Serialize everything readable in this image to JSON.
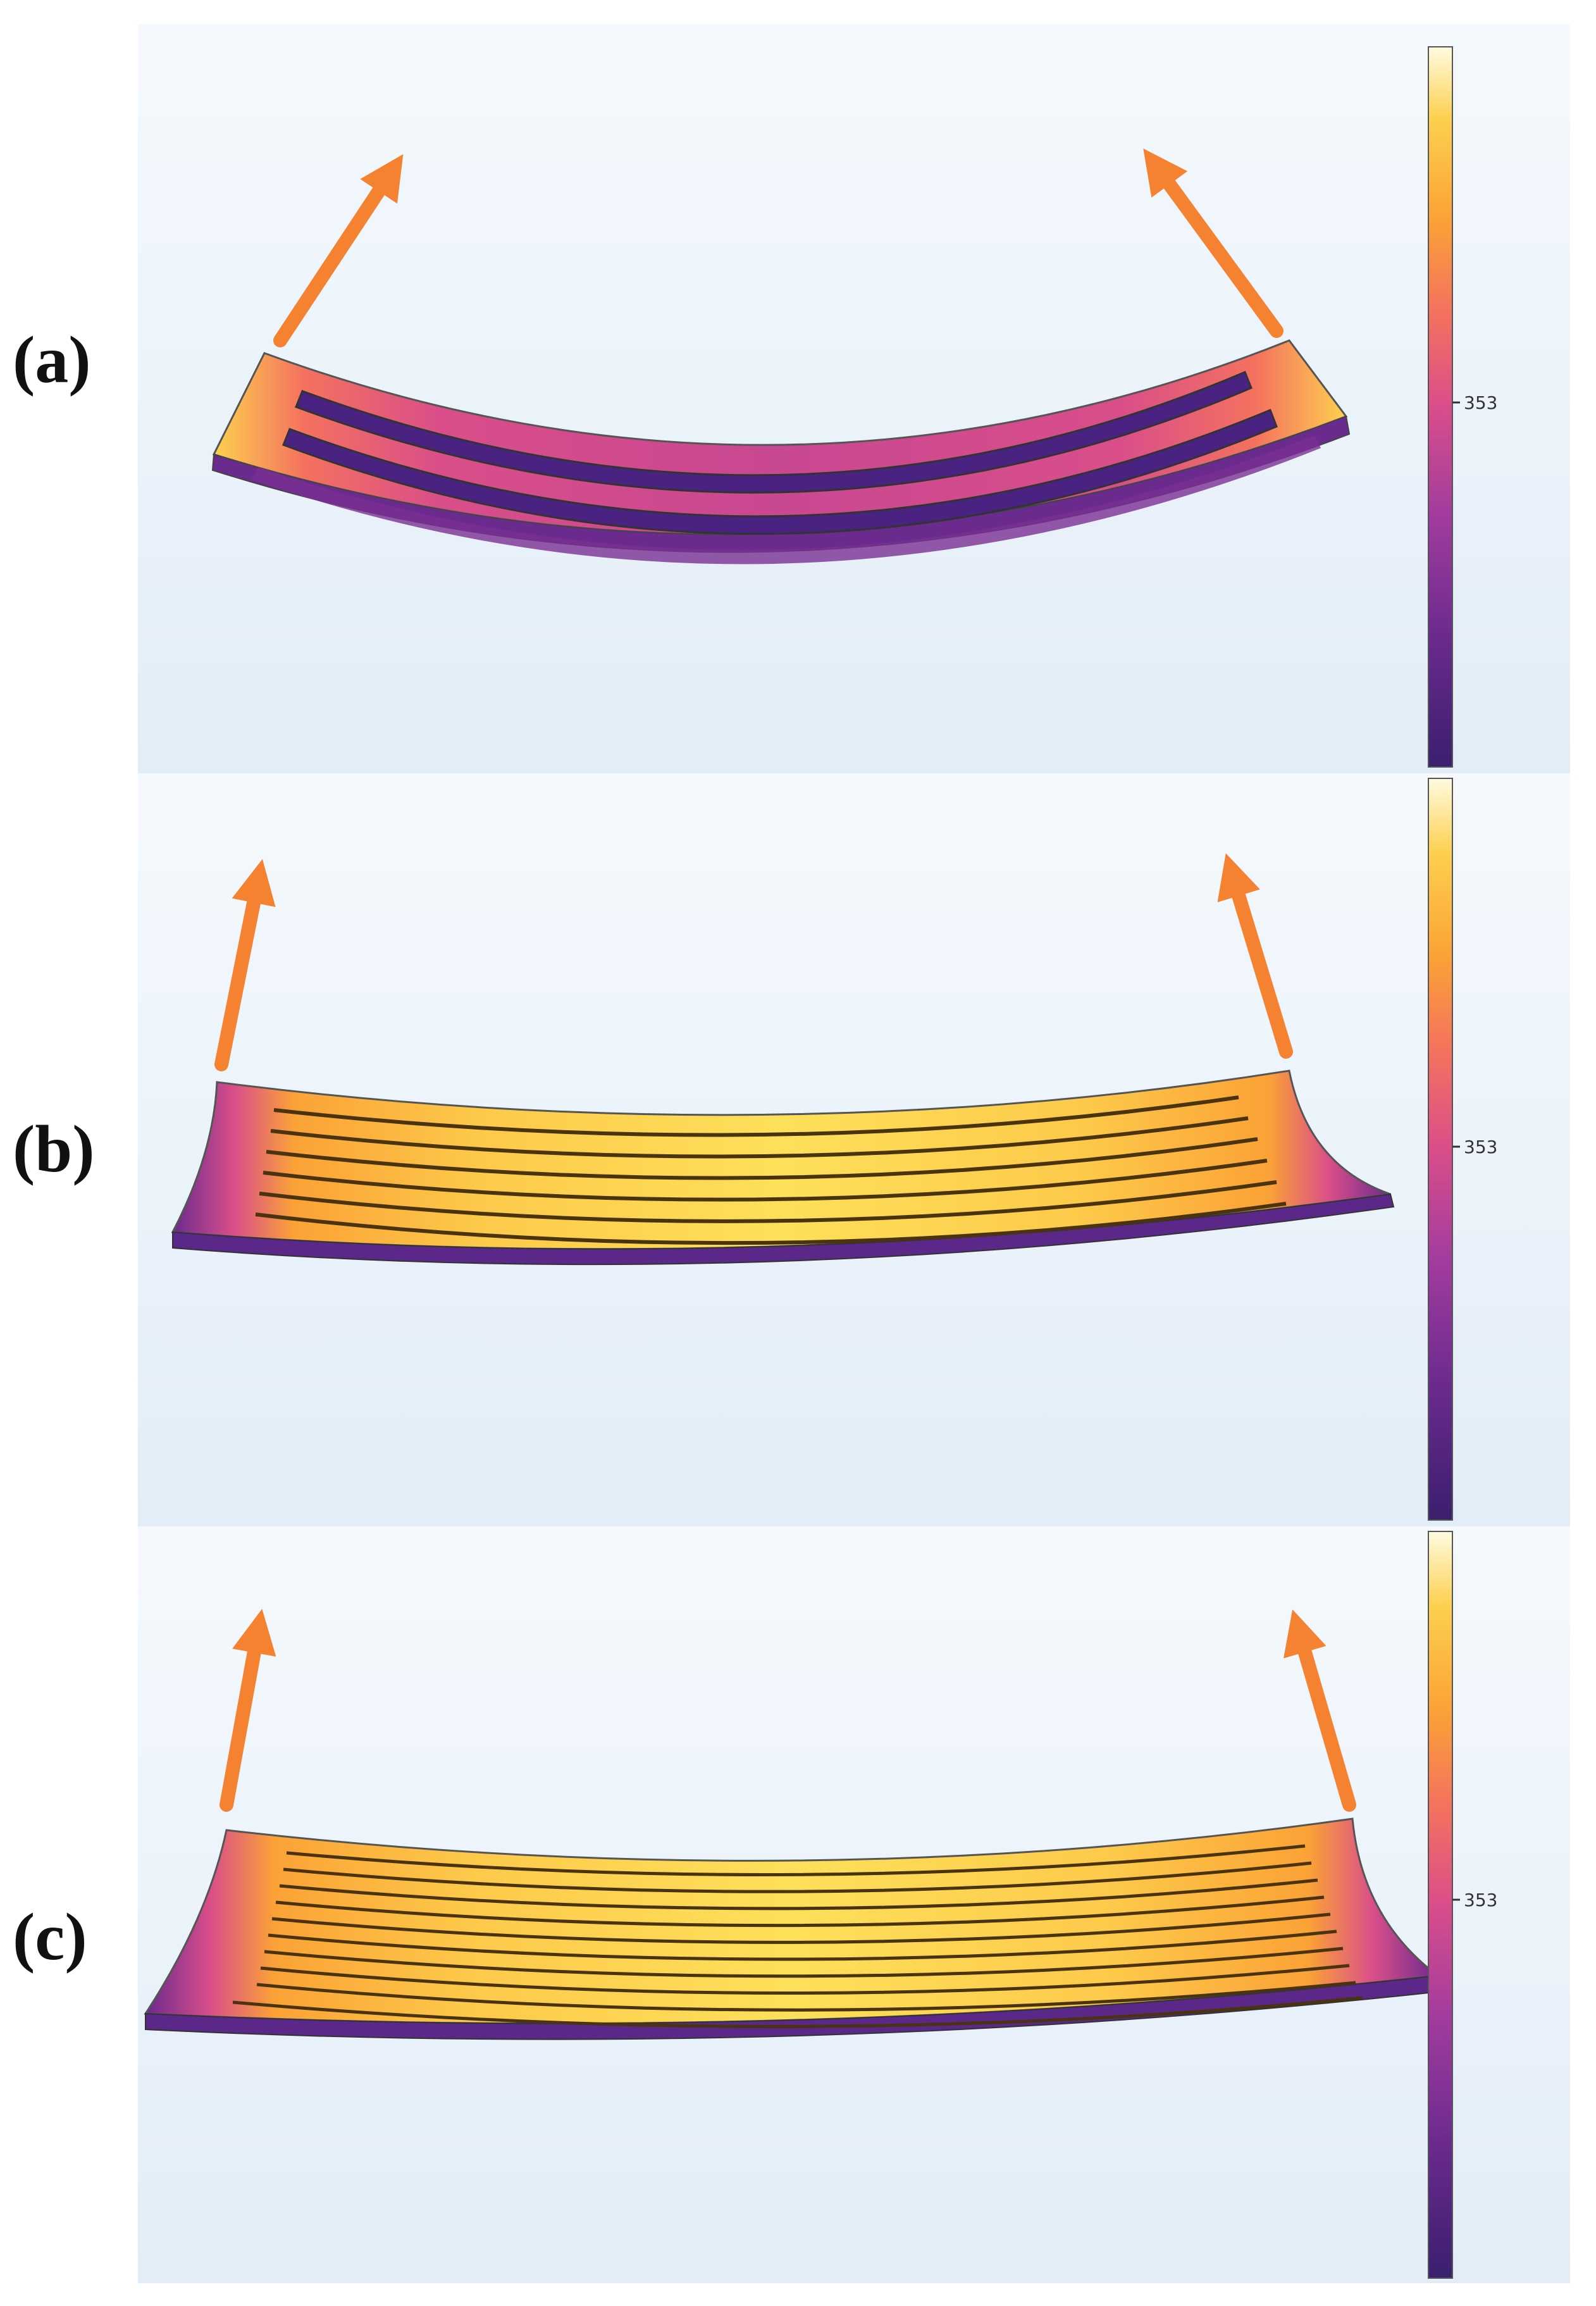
{
  "colors": {
    "background_top": "#f4f8fd",
    "background_bottom": "#e3eef9",
    "arrow": "#f58231",
    "colormap": [
      "#3b1f6e",
      "#6b2a8e",
      "#a23c9e",
      "#d94e8a",
      "#f4715f",
      "#fba236",
      "#fdd04f",
      "#fffbe0"
    ]
  },
  "colorbar": {
    "tick_label": "353",
    "scale": "plasma"
  },
  "panels": [
    {
      "label": "(a)",
      "slot_count": 2,
      "arrow_direction": "outward-up",
      "dominant_color": "pink-purple"
    },
    {
      "label": "(b)",
      "slot_count": 6,
      "arrow_direction": "up",
      "dominant_color": "yellow-orange"
    },
    {
      "label": "(c)",
      "slot_count": 10,
      "arrow_direction": "up",
      "dominant_color": "yellow-orange"
    }
  ]
}
